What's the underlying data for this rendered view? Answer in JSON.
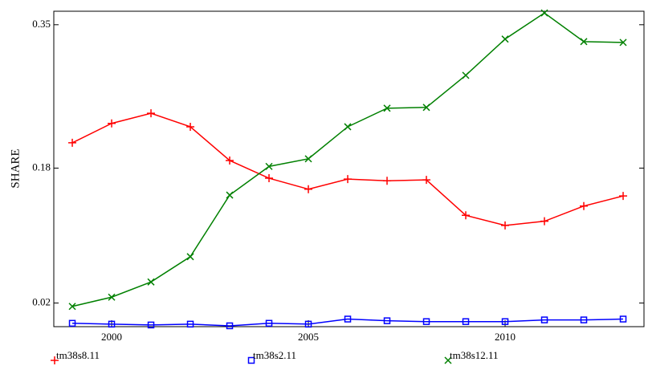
{
  "chart_data": {
    "type": "line",
    "y_label": "SHARE",
    "x": [
      1999,
      2000,
      2001,
      2002,
      2003,
      2004,
      2005,
      2006,
      2007,
      2008,
      2009,
      2010,
      2011,
      2012,
      2013
    ],
    "series": [
      {
        "name": "tm38s8.11",
        "color": "#ff0000",
        "marker": "plus",
        "values": [
          0.21,
          0.233,
          0.245,
          0.229,
          0.189,
          0.168,
          0.155,
          0.167,
          0.165,
          0.166,
          0.124,
          0.112,
          0.117,
          0.135,
          0.147
        ]
      },
      {
        "name": "tm38s2.11",
        "color": "#0000ff",
        "marker": "square",
        "values": [
          -0.004,
          -0.005,
          -0.006,
          -0.005,
          -0.007,
          -0.004,
          -0.005,
          0.001,
          -0.001,
          -0.002,
          -0.002,
          -0.002,
          0.0,
          0.0,
          0.001
        ]
      },
      {
        "name": "tm38s12.11",
        "color": "#008000",
        "marker": "cross",
        "values": [
          0.016,
          0.027,
          0.045,
          0.075,
          0.148,
          0.182,
          0.191,
          0.229,
          0.251,
          0.252,
          0.29,
          0.333,
          0.364,
          0.33,
          0.329
        ]
      }
    ],
    "xlim": [
      1998.53,
      2013.53
    ],
    "xticks": [
      2000,
      2005,
      2010
    ],
    "ylim": [
      -0.008,
      0.366
    ],
    "yticks": [
      0.02,
      0.18,
      0.35
    ]
  }
}
